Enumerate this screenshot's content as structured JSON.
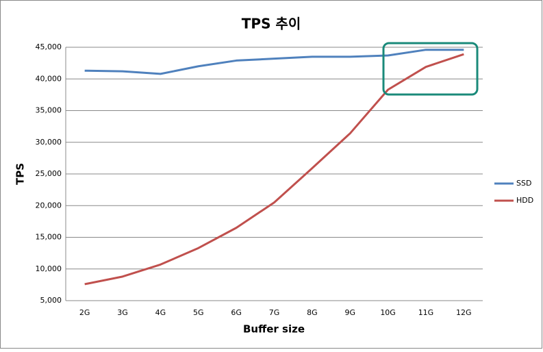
{
  "chart_data": {
    "type": "line",
    "title": "TPS 추이",
    "x_label": "Buffer size",
    "y_label": "TPS",
    "categories": [
      "2G",
      "3G",
      "4G",
      "5G",
      "6G",
      "7G",
      "8G",
      "9G",
      "10G",
      "11G",
      "12G"
    ],
    "series": [
      {
        "name": "SSD",
        "color": "#4f81bd",
        "values": [
          41300,
          41200,
          40800,
          42000,
          42900,
          43200,
          43500,
          43500,
          43700,
          44600,
          44600
        ]
      },
      {
        "name": "HDD",
        "color": "#c0504d",
        "values": [
          7600,
          8800,
          10700,
          13300,
          16500,
          20500,
          25900,
          31400,
          38300,
          41900,
          43900
        ]
      }
    ],
    "ylim": [
      5000,
      45000
    ],
    "yticks": [
      {
        "value": 5000,
        "label": "5,000"
      },
      {
        "value": 10000,
        "label": "10,000"
      },
      {
        "value": 15000,
        "label": "15,000"
      },
      {
        "value": 20000,
        "label": "20,000"
      },
      {
        "value": 25000,
        "label": "25,000"
      },
      {
        "value": 30000,
        "label": "30,000"
      },
      {
        "value": 35000,
        "label": "35,000"
      },
      {
        "value": 40000,
        "label": "40,000"
      },
      {
        "value": 45000,
        "label": "45,000"
      }
    ],
    "grid": true,
    "legend": "right"
  }
}
